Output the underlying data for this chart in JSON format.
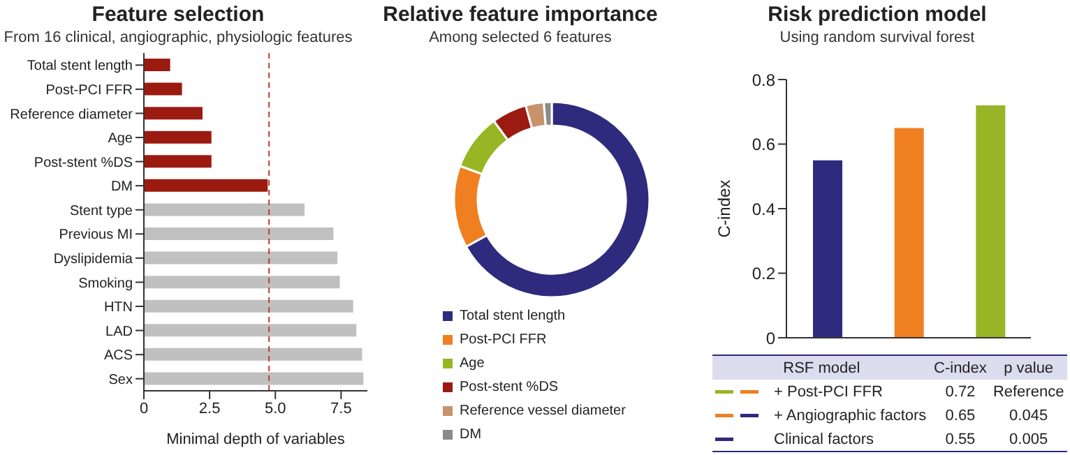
{
  "chart_data": [
    {
      "type": "bar",
      "orientation": "horizontal",
      "title": "Feature selection",
      "subtitle": "From 16 clinical, angiographic, physiologic features",
      "xlabel": "Minimal depth of variables",
      "categories": [
        "Total stent length",
        "Post-PCI FFR",
        "Reference diameter",
        "Age",
        "Post-stent %DS",
        "DM",
        "Stent type",
        "Previous MI",
        "Dyslipidemia",
        "Smoking",
        "HTN",
        "LAD",
        "ACS",
        "Sex"
      ],
      "values": [
        1.0,
        1.45,
        2.23,
        2.57,
        2.57,
        4.71,
        6.11,
        7.21,
        7.36,
        7.45,
        7.96,
        8.08,
        8.3,
        8.35
      ],
      "colors": [
        "#9b1b10",
        "#9b1b10",
        "#9b1b10",
        "#9b1b10",
        "#9b1b10",
        "#9b1b10",
        "#c0c0c0",
        "#c0c0c0",
        "#c0c0c0",
        "#c0c0c0",
        "#c0c0c0",
        "#c0c0c0",
        "#c0c0c0",
        "#c0c0c0"
      ],
      "xlim": [
        0,
        8.5
      ],
      "xticks": [
        0,
        2.5,
        {
          "value": 5,
          "label": "5.0"
        },
        7.5
      ],
      "ref_lines": [
        {
          "axis": "x",
          "value": 4.76,
          "color": "#c0392b",
          "line_style": "dashed"
        }
      ]
    },
    {
      "type": "donut",
      "title": "Relative feature importance",
      "subtitle": "Among selected 6 features",
      "categories": [
        "Total stent length",
        "Post-PCI FFR",
        "Age",
        "Post-stent %DS",
        "Reference vessel diameter",
        "DM"
      ],
      "values": [
        67,
        13.6,
        9.3,
        5.8,
        3,
        1.3
      ],
      "colors": [
        "#2e2a7e",
        "#f07f22",
        "#97b524",
        "#9b1b10",
        "#c8926a",
        "#8a8a8a"
      ],
      "legend": "bottom"
    },
    {
      "type": "bar",
      "title": "Risk prediction model",
      "subtitle": "Using random survival forest",
      "ylabel": "C-index",
      "categories": [
        null,
        null,
        null
      ],
      "values": [
        0.55,
        0.65,
        0.72
      ],
      "colors": [
        "#2e2a7e",
        "#f07f22",
        "#97b524"
      ],
      "ylim": [
        0,
        0.8
      ],
      "yticks": [
        0,
        0.2,
        0.4,
        0.6,
        0.8
      ],
      "annotations": [
        "RSF model",
        "C-index",
        "p value",
        "+ Post-PCI FFR",
        "0.72",
        "Reference",
        "+ Angiographic factors",
        "0.65",
        "0.045",
        "Clinical factors",
        "0.55",
        "0.005"
      ]
    }
  ]
}
